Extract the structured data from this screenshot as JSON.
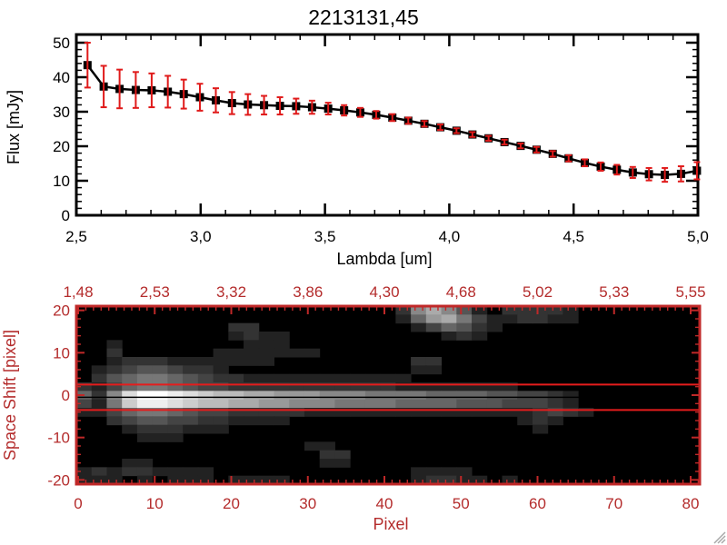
{
  "title": "2213131,45",
  "colors": {
    "background": "#ffffff",
    "spectrum": "#000000",
    "error_bars": "#e01a1a",
    "image_axis": "#c02828",
    "image_labels": "#b42c2c",
    "overlay_red": "#e51c1c",
    "overlay_black": "#000000",
    "resize_grip": "#a8a8a8"
  },
  "icons": {
    "resize_grip": "diagonal-resize-lines"
  },
  "chart_data": [
    {
      "type": "line",
      "title": "2213131,45",
      "xlabel": "Lambda [um]",
      "ylabel": "Flux [mJy]",
      "xlim": [
        2.5,
        5.0
      ],
      "ylim": [
        0,
        50
      ],
      "x_major_ticks": [
        2.5,
        3.0,
        3.5,
        4.0,
        4.5,
        5.0
      ],
      "x_tick_labels": [
        "2,5",
        "3,0",
        "3,5",
        "4,0",
        "4,5",
        "5,0"
      ],
      "x_minor_step": 0.1,
      "y_major_ticks": [
        0,
        10,
        20,
        30,
        40,
        50
      ],
      "y_tick_labels": [
        "0",
        "10",
        "20",
        "30",
        "40",
        "50"
      ],
      "y_minor_step": 2,
      "marker": "filled-square",
      "grid": false,
      "x": [
        2.545,
        2.61,
        2.674,
        2.739,
        2.803,
        2.868,
        2.932,
        2.997,
        3.061,
        3.126,
        3.19,
        3.255,
        3.319,
        3.384,
        3.448,
        3.513,
        3.577,
        3.642,
        3.706,
        3.771,
        3.835,
        3.9,
        3.964,
        4.029,
        4.093,
        4.158,
        4.222,
        4.287,
        4.351,
        4.416,
        4.48,
        4.545,
        4.609,
        4.674,
        4.738,
        4.803,
        4.867,
        4.932,
        4.996
      ],
      "y": [
        43.5,
        37.3,
        36.6,
        36.3,
        36.2,
        35.8,
        35.1,
        34.2,
        33.3,
        32.5,
        32.1,
        31.9,
        31.7,
        31.6,
        31.3,
        30.9,
        30.4,
        29.8,
        29.1,
        28.3,
        27.4,
        26.5,
        25.5,
        24.5,
        23.4,
        22.3,
        21.2,
        20.1,
        19.0,
        17.8,
        16.5,
        15.2,
        14.1,
        13.2,
        12.4,
        11.9,
        11.7,
        12.0,
        12.9
      ],
      "yerr": [
        6.5,
        6.0,
        5.6,
        5.2,
        4.9,
        4.6,
        4.2,
        3.9,
        3.5,
        3.2,
        3.0,
        2.7,
        2.5,
        2.2,
        1.9,
        1.7,
        1.5,
        1.3,
        1.1,
        1.0,
        0.9,
        0.8,
        0.8,
        0.7,
        0.7,
        0.7,
        0.7,
        0.7,
        0.8,
        0.8,
        0.9,
        1.0,
        1.2,
        1.4,
        1.6,
        1.8,
        2.0,
        2.2,
        2.5
      ]
    },
    {
      "type": "heatmap",
      "xlabel": "Pixel",
      "ylabel": "Space Shift [pixel]",
      "xlim": [
        0,
        81
      ],
      "ylim": [
        -21,
        21
      ],
      "x_major_ticks": [
        0,
        10,
        20,
        30,
        40,
        50,
        60,
        70,
        80
      ],
      "x_tick_labels": [
        "0",
        "10",
        "20",
        "30",
        "40",
        "50",
        "60",
        "70",
        "80"
      ],
      "x_minor_step": 1,
      "top_axis_tick_labels": [
        "1,48",
        "2,53",
        "3,32",
        "3,86",
        "4,30",
        "4,68",
        "5,02",
        "5,33",
        "5,55"
      ],
      "y_major_ticks": [
        20,
        10,
        0,
        -10,
        -20
      ],
      "y_tick_labels": [
        "20",
        "10",
        "0",
        "-10",
        "-20"
      ],
      "y_minor_step": 2,
      "overlay_lines": {
        "red_shifts": [
          2.5,
          -3.5
        ],
        "black_shift": -0.5
      },
      "grid_cols": 41,
      "grid_rows": 21,
      "pixel_per_col": 2,
      "shift_per_row": 2,
      "shift_top": 20,
      "rows_hex": [
        "00000000000000000000038a85203333200000000",
        "000000000000000000000269a7422332200000000",
        "00000000003300000000002465320000000000000",
        "00000000002322000000000023200000000000000",
        "00200000000222000000000000000000000000000",
        "00300000022222220000000000000000000000000",
        "00233322222220000000003300000000000000000",
        "02345543320000000000002200000000000000000",
        "03567765433222222222220000000000000000000",
        "32467765443333333333322222222000000000000",
        "638dffedcbbaa9998887777666655443200000000",
        "427ceedcbbaa9988877776666555444320 0000000",
        "22467765443333322222222222222234320000000",
        "00345544332222000000000000000232000000000",
        "00023332220000000000000000000020000000000",
        "00002220000000000000000000000000000000000",
        "00000000000000022000000000000000000000000",
        "00000000000000003300000000000000000000000",
        "00022000000000002200000000000000000000000",
        "23233222200000000000002222000000000000000",
        "22202022202222000000002332202000000000000"
      ]
    }
  ]
}
